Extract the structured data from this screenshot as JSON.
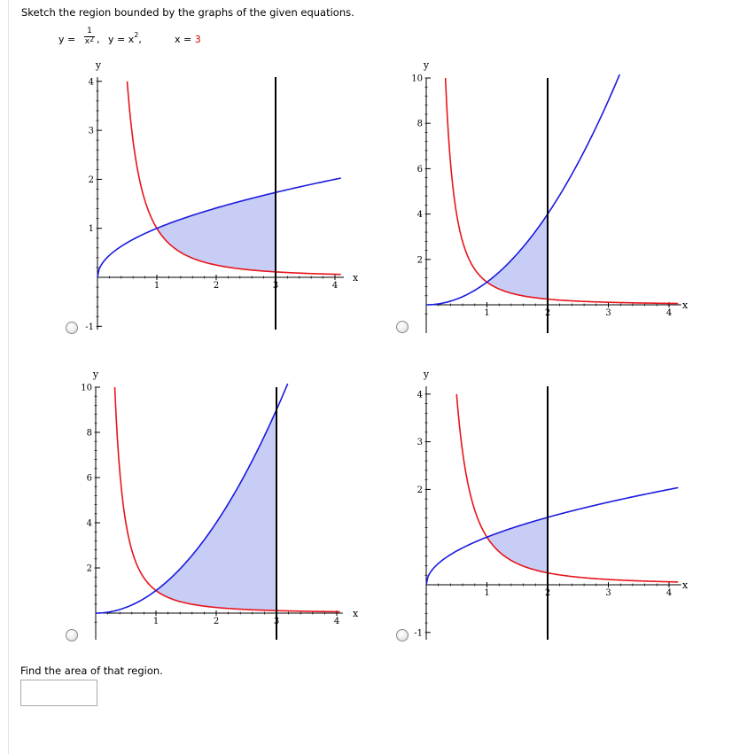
{
  "question": {
    "prompt": "Sketch the region bounded by the graphs of the given equations.",
    "eq1_lhs": "y =",
    "eq1_num": "1",
    "eq1_den": "x",
    "eq1_den_exp": "2",
    "eq2": "y = x",
    "eq2_exp": "2",
    "eq3_lhs": "x = ",
    "eq3_val": "3",
    "area_prompt": "Find the area of that region.",
    "answer_value": ""
  },
  "colors": {
    "curve_reciprocal": "#e8141b",
    "curve_other": "#1a1ae0",
    "vertical_line": "#000000",
    "region_fill": "#c8cdf5"
  },
  "chart_data": [
    {
      "type": "line",
      "option": 1,
      "xlabel": "x",
      "ylabel": "y",
      "xlim": [
        0,
        4
      ],
      "ylim": [
        -1,
        4
      ],
      "xticks": [
        "1",
        "2",
        "3",
        "4"
      ],
      "yticks": [
        "-1",
        "1",
        "2",
        "3",
        "4"
      ],
      "series": [
        {
          "curve": "1/x^2",
          "color": "#e8141b"
        },
        {
          "curve": "sqrt(x)",
          "color": "#1a1ae0"
        },
        {
          "curve": "x = 3",
          "color": "#000000"
        }
      ],
      "region": {
        "x_from": 1,
        "x_to": 3,
        "upper": "sqrt(x)",
        "lower": "1/x^2"
      }
    },
    {
      "type": "line",
      "option": 2,
      "xlabel": "x",
      "ylabel": "y",
      "xlim": [
        0,
        4
      ],
      "ylim": [
        -0.5,
        10
      ],
      "xticks": [
        "1",
        "2",
        "3",
        "4"
      ],
      "yticks": [
        "2",
        "4",
        "6",
        "8",
        "10"
      ],
      "series": [
        {
          "curve": "1/x^2",
          "color": "#e8141b"
        },
        {
          "curve": "x^2",
          "color": "#1a1ae0"
        },
        {
          "curve": "x = 2",
          "color": "#000000"
        }
      ],
      "region": {
        "x_from": 1,
        "x_to": 2,
        "upper": "x^2",
        "lower": "1/x^2"
      }
    },
    {
      "type": "line",
      "option": 3,
      "xlabel": "x",
      "ylabel": "y",
      "xlim": [
        0,
        4
      ],
      "ylim": [
        -0.5,
        10
      ],
      "xticks": [
        "1",
        "2",
        "3",
        "4"
      ],
      "yticks": [
        "2",
        "4",
        "6",
        "8",
        "10"
      ],
      "series": [
        {
          "curve": "1/x^2",
          "color": "#e8141b"
        },
        {
          "curve": "x^2",
          "color": "#1a1ae0"
        },
        {
          "curve": "x = 3",
          "color": "#000000"
        }
      ],
      "region": {
        "x_from": 1,
        "x_to": 3,
        "upper": "x^2",
        "lower": "1/x^2"
      }
    },
    {
      "type": "line",
      "option": 4,
      "xlabel": "x",
      "ylabel": "y",
      "xlim": [
        0,
        4
      ],
      "ylim": [
        -1,
        4
      ],
      "xticks": [
        "1",
        "2",
        "3",
        "4"
      ],
      "yticks": [
        "-1",
        "2",
        "3",
        "4"
      ],
      "series": [
        {
          "curve": "1/x^2",
          "color": "#e8141b"
        },
        {
          "curve": "sqrt(x)",
          "color": "#1a1ae0"
        },
        {
          "curve": "x = 2",
          "color": "#000000"
        }
      ],
      "region": {
        "x_from": 1,
        "x_to": 2,
        "upper": "sqrt(x)",
        "lower": "1/x^2"
      }
    }
  ]
}
